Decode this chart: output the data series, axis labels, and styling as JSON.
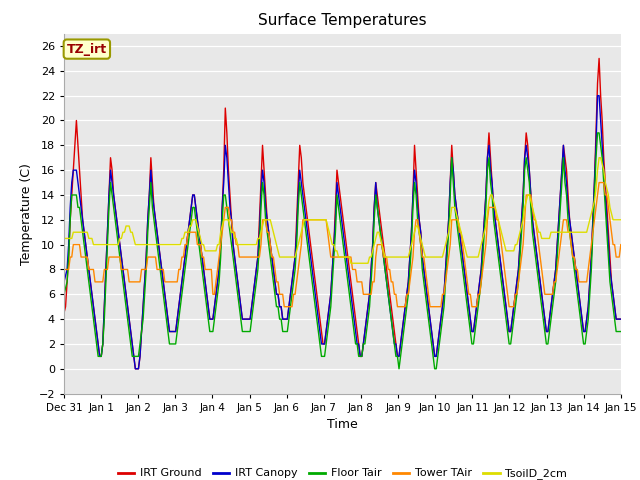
{
  "title": "Surface Temperatures",
  "xlabel": "Time",
  "ylabel": "Temperature (C)",
  "ylim": [
    -2,
    27
  ],
  "yticks": [
    -2,
    0,
    2,
    4,
    6,
    8,
    10,
    12,
    14,
    16,
    18,
    20,
    22,
    24,
    26
  ],
  "annotation_text": "TZ_irt",
  "annotation_color": "#990000",
  "annotation_bg": "#ffffcc",
  "annotation_border": "#999900",
  "fig_bg": "#ffffff",
  "plot_bg": "#e8e8e8",
  "colors": {
    "IRT Ground": "#dd0000",
    "IRT Canopy": "#0000cc",
    "Floor Tair": "#00aa00",
    "Tower TAir": "#ff8800",
    "TsoilD_2cm": "#dddd00"
  },
  "linewidth": 1.0,
  "n_days": 15,
  "pts_per_day": 24,
  "date_labels": [
    "Dec 31",
    "Jan 1",
    "Jan 2",
    "Jan 3",
    "Jan 4",
    "Jan 5",
    "Jan 6",
    "Jan 7",
    "Jan 8",
    "Jan 9",
    "Jan 10",
    "Jan 11",
    "Jan 12",
    "Jan 13",
    "Jan 14",
    "Jan 15"
  ],
  "series": {
    "IRT Ground": [
      4.5,
      5,
      7,
      9,
      12,
      14,
      16,
      18,
      20,
      18,
      16,
      14,
      12,
      11,
      10,
      9,
      8,
      7,
      6,
      5,
      4,
      3,
      2,
      1,
      1,
      2,
      5,
      8,
      11,
      14,
      17,
      16,
      14,
      13,
      12,
      11,
      10,
      9,
      8,
      7,
      6,
      5,
      4,
      3,
      2,
      1,
      0,
      0,
      0,
      1,
      3,
      5,
      7,
      9,
      12,
      14,
      17,
      15,
      13,
      12,
      11,
      10,
      9,
      8,
      7,
      6,
      5,
      4,
      3,
      3,
      3,
      3,
      3,
      4,
      5,
      6,
      7,
      8,
      9,
      10,
      11,
      12,
      13,
      14,
      14,
      13,
      12,
      11,
      10,
      9,
      8,
      7,
      6,
      5,
      4,
      4,
      4,
      5,
      6,
      7,
      8,
      10,
      13,
      16,
      21,
      19,
      16,
      14,
      12,
      10,
      9,
      8,
      7,
      6,
      5,
      4,
      4,
      4,
      4,
      4,
      4,
      5,
      6,
      7,
      8,
      9,
      12,
      15,
      18,
      16,
      14,
      12,
      11,
      10,
      9,
      8,
      7,
      6,
      6,
      5,
      5,
      4,
      4,
      4,
      4,
      5,
      6,
      7,
      8,
      9,
      12,
      15,
      18,
      17,
      15,
      14,
      13,
      12,
      11,
      10,
      9,
      8,
      7,
      6,
      5,
      4,
      3,
      2,
      2,
      3,
      4,
      5,
      6,
      8,
      10,
      13,
      16,
      15,
      14,
      13,
      12,
      11,
      10,
      9,
      8,
      7,
      6,
      5,
      4,
      3,
      2,
      1,
      1,
      2,
      3,
      4,
      5,
      6,
      8,
      10,
      13,
      15,
      14,
      13,
      12,
      11,
      10,
      9,
      8,
      7,
      6,
      5,
      4,
      3,
      2,
      1,
      1,
      2,
      3,
      4,
      5,
      6,
      7,
      9,
      11,
      14,
      18,
      16,
      14,
      12,
      11,
      9,
      8,
      7,
      6,
      5,
      4,
      3,
      2,
      1,
      1,
      2,
      3,
      4,
      5,
      6,
      8,
      10,
      12,
      15,
      18,
      16,
      14,
      13,
      12,
      11,
      10,
      9,
      8,
      7,
      6,
      5,
      4,
      3,
      3,
      4,
      5,
      6,
      7,
      8,
      10,
      12,
      14,
      17,
      19,
      17,
      15,
      13,
      12,
      11,
      10,
      9,
      8,
      7,
      6,
      5,
      4,
      3,
      3,
      4,
      5,
      6,
      7,
      8,
      10,
      12,
      14,
      17,
      19,
      18,
      16,
      14,
      12,
      11,
      10,
      9,
      8,
      7,
      6,
      5,
      4,
      3,
      3,
      4,
      5,
      6,
      7,
      8,
      10,
      12,
      14,
      16,
      18,
      17,
      16,
      14,
      12,
      11,
      10,
      9,
      8,
      7,
      6,
      5,
      4,
      3,
      3,
      4,
      5,
      7,
      9,
      12,
      15,
      19,
      23,
      25,
      22,
      20,
      17,
      15,
      13,
      11,
      9,
      7,
      6,
      5,
      4,
      4,
      4,
      4
    ],
    "IRT Canopy": [
      7,
      7.5,
      8,
      10,
      13,
      15,
      16,
      16,
      16,
      15,
      14,
      13,
      12,
      11,
      10,
      9,
      8,
      7,
      6,
      5,
      4,
      3,
      2,
      1,
      1,
      2,
      5,
      8,
      11,
      14,
      16,
      15,
      14,
      13,
      12,
      11,
      10,
      9,
      8,
      7,
      6,
      5,
      4,
      3,
      2,
      1,
      0,
      0,
      0,
      1,
      3,
      5,
      7,
      9,
      12,
      14,
      16,
      14,
      13,
      12,
      11,
      10,
      9,
      8,
      7,
      6,
      5,
      4,
      3,
      3,
      3,
      3,
      3,
      4,
      5,
      6,
      7,
      8,
      9,
      10,
      11,
      12,
      13,
      14,
      14,
      13,
      12,
      11,
      10,
      9,
      8,
      7,
      6,
      5,
      4,
      4,
      4,
      5,
      6,
      7,
      8,
      10,
      13,
      15,
      18,
      17,
      15,
      13,
      12,
      10,
      9,
      8,
      7,
      6,
      5,
      4,
      4,
      4,
      4,
      4,
      4,
      5,
      6,
      7,
      8,
      9,
      11,
      14,
      16,
      15,
      13,
      12,
      11,
      10,
      9,
      8,
      7,
      6,
      6,
      5,
      5,
      4,
      4,
      4,
      4,
      5,
      6,
      7,
      8,
      9,
      11,
      14,
      16,
      15,
      14,
      13,
      12,
      11,
      10,
      9,
      8,
      7,
      6,
      5,
      4,
      3,
      2,
      2,
      2,
      3,
      4,
      5,
      6,
      8,
      10,
      12,
      15,
      14,
      13,
      12,
      11,
      10,
      9,
      8,
      7,
      6,
      5,
      4,
      3,
      2,
      2,
      1,
      1,
      2,
      3,
      4,
      5,
      6,
      8,
      10,
      13,
      15,
      13,
      12,
      11,
      10,
      9,
      8,
      7,
      6,
      5,
      4,
      3,
      2,
      2,
      1,
      1,
      2,
      3,
      4,
      5,
      6,
      7,
      9,
      11,
      14,
      16,
      15,
      13,
      12,
      11,
      9,
      8,
      7,
      6,
      5,
      4,
      3,
      2,
      1,
      1,
      2,
      3,
      4,
      5,
      6,
      8,
      10,
      12,
      15,
      17,
      16,
      14,
      13,
      12,
      11,
      10,
      9,
      8,
      7,
      6,
      5,
      4,
      3,
      3,
      4,
      5,
      6,
      7,
      8,
      10,
      12,
      14,
      17,
      18,
      16,
      15,
      13,
      12,
      11,
      10,
      9,
      8,
      7,
      6,
      5,
      4,
      3,
      3,
      4,
      5,
      6,
      7,
      8,
      10,
      12,
      14,
      17,
      18,
      17,
      16,
      14,
      12,
      11,
      10,
      9,
      8,
      7,
      6,
      5,
      4,
      3,
      3,
      4,
      5,
      6,
      7,
      8,
      10,
      12,
      14,
      16,
      18,
      16,
      15,
      13,
      12,
      11,
      10,
      9,
      8,
      7,
      6,
      5,
      4,
      3,
      3,
      4,
      5,
      7,
      9,
      12,
      15,
      18,
      22,
      22,
      20,
      18,
      16,
      14,
      12,
      10,
      8,
      7,
      6,
      5,
      4,
      4,
      4,
      4
    ],
    "Floor Tair": [
      6,
      6.5,
      7,
      9,
      12,
      14,
      14,
      14,
      14,
      13,
      13,
      12,
      11,
      10,
      9,
      8,
      7,
      6,
      5,
      4,
      3,
      2,
      1,
      1,
      1,
      2,
      4,
      7,
      10,
      13,
      15,
      14,
      13,
      12,
      11,
      10,
      9,
      8,
      7,
      6,
      5,
      4,
      3,
      2,
      1,
      1,
      1,
      1,
      1,
      2,
      3,
      4,
      6,
      8,
      11,
      13,
      15,
      13,
      12,
      11,
      10,
      9,
      8,
      7,
      6,
      5,
      4,
      3,
      2,
      2,
      2,
      2,
      2,
      3,
      4,
      5,
      6,
      7,
      8,
      9,
      10,
      11,
      12,
      13,
      13,
      12,
      11,
      10,
      9,
      8,
      7,
      6,
      5,
      4,
      3,
      3,
      3,
      4,
      5,
      6,
      7,
      9,
      12,
      14,
      14,
      13,
      12,
      11,
      10,
      9,
      8,
      7,
      6,
      5,
      4,
      3,
      3,
      3,
      3,
      3,
      3,
      4,
      5,
      6,
      7,
      8,
      10,
      13,
      15,
      14,
      12,
      11,
      10,
      9,
      8,
      7,
      6,
      5,
      5,
      4,
      4,
      3,
      3,
      3,
      3,
      4,
      5,
      6,
      7,
      8,
      10,
      13,
      15,
      14,
      13,
      12,
      11,
      10,
      9,
      8,
      7,
      6,
      5,
      4,
      3,
      2,
      1,
      1,
      1,
      2,
      3,
      4,
      5,
      7,
      9,
      11,
      14,
      13,
      12,
      11,
      10,
      9,
      8,
      7,
      6,
      5,
      4,
      3,
      2,
      2,
      1,
      1,
      1,
      2,
      2,
      3,
      4,
      5,
      7,
      9,
      12,
      14,
      13,
      12,
      11,
      10,
      9,
      8,
      7,
      6,
      5,
      4,
      3,
      2,
      1,
      1,
      0,
      1,
      2,
      3,
      4,
      5,
      6,
      8,
      10,
      13,
      15,
      14,
      12,
      11,
      10,
      8,
      7,
      6,
      5,
      4,
      3,
      2,
      1,
      0,
      0,
      1,
      2,
      3,
      4,
      5,
      7,
      9,
      11,
      14,
      17,
      15,
      13,
      12,
      11,
      10,
      9,
      8,
      7,
      6,
      5,
      4,
      3,
      2,
      2,
      3,
      4,
      5,
      6,
      7,
      9,
      11,
      13,
      16,
      17,
      15,
      14,
      12,
      11,
      10,
      9,
      8,
      7,
      6,
      5,
      4,
      3,
      2,
      2,
      3,
      4,
      5,
      6,
      7,
      9,
      11,
      13,
      16,
      17,
      16,
      15,
      13,
      11,
      10,
      9,
      8,
      7,
      6,
      5,
      4,
      3,
      2,
      2,
      3,
      4,
      5,
      6,
      7,
      9,
      11,
      13,
      15,
      17,
      15,
      14,
      12,
      11,
      10,
      9,
      8,
      7,
      6,
      5,
      4,
      3,
      2,
      2,
      3,
      4,
      6,
      8,
      11,
      14,
      17,
      19,
      19,
      18,
      17,
      15,
      13,
      11,
      9,
      7,
      6,
      5,
      4,
      3,
      3,
      3,
      3
    ],
    "Tower TAir": [
      8,
      8,
      8,
      8,
      9,
      9,
      10,
      10,
      10,
      10,
      10,
      9,
      9,
      9,
      9,
      9,
      8,
      8,
      8,
      8,
      7,
      7,
      7,
      7,
      7,
      7,
      8,
      8,
      8,
      9,
      9,
      9,
      9,
      9,
      9,
      9,
      9,
      8,
      8,
      8,
      8,
      8,
      7,
      7,
      7,
      7,
      7,
      7,
      7,
      7,
      8,
      8,
      8,
      8,
      9,
      9,
      9,
      9,
      9,
      9,
      8,
      8,
      8,
      8,
      8,
      7,
      7,
      7,
      7,
      7,
      7,
      7,
      7,
      7,
      8,
      8,
      9,
      9,
      10,
      10,
      11,
      11,
      11,
      11,
      11,
      11,
      10,
      10,
      10,
      9,
      9,
      8,
      8,
      8,
      8,
      8,
      6,
      6,
      7,
      8,
      9,
      10,
      11,
      12,
      13,
      13,
      13,
      12,
      12,
      11,
      11,
      10,
      10,
      9,
      9,
      9,
      9,
      9,
      9,
      9,
      9,
      9,
      9,
      9,
      9,
      9,
      9,
      10,
      12,
      12,
      12,
      11,
      11,
      10,
      9,
      9,
      8,
      7,
      7,
      6,
      6,
      6,
      5,
      5,
      5,
      5,
      5,
      5,
      6,
      6,
      7,
      8,
      9,
      10,
      12,
      12,
      12,
      12,
      12,
      12,
      12,
      12,
      12,
      12,
      12,
      12,
      12,
      12,
      12,
      12,
      11,
      10,
      9,
      9,
      9,
      9,
      9,
      9,
      9,
      9,
      9,
      9,
      9,
      9,
      9,
      9,
      8,
      8,
      8,
      7,
      7,
      7,
      7,
      6,
      6,
      6,
      6,
      6,
      6,
      7,
      7,
      9,
      10,
      10,
      10,
      10,
      9,
      9,
      9,
      8,
      8,
      7,
      7,
      6,
      6,
      5,
      5,
      5,
      5,
      5,
      5,
      6,
      6,
      7,
      8,
      9,
      11,
      12,
      12,
      11,
      10,
      9,
      9,
      8,
      7,
      6,
      5,
      5,
      5,
      5,
      5,
      5,
      5,
      5,
      6,
      6,
      7,
      8,
      9,
      10,
      12,
      12,
      12,
      12,
      12,
      11,
      11,
      10,
      9,
      8,
      7,
      6,
      6,
      5,
      5,
      5,
      5,
      6,
      6,
      7,
      8,
      9,
      10,
      12,
      13,
      13,
      13,
      13,
      13,
      12,
      12,
      11,
      10,
      9,
      8,
      7,
      6,
      5,
      5,
      5,
      5,
      6,
      6,
      7,
      8,
      9,
      10,
      12,
      14,
      14,
      14,
      14,
      13,
      12,
      12,
      11,
      10,
      9,
      8,
      7,
      6,
      6,
      6,
      6,
      6,
      6,
      7,
      7,
      8,
      9,
      10,
      11,
      12,
      12,
      12,
      11,
      11,
      10,
      9,
      9,
      8,
      8,
      7,
      7,
      7,
      7,
      7,
      7,
      8,
      9,
      10,
      11,
      12,
      13,
      14,
      15,
      15,
      15,
      15,
      14,
      14,
      13,
      12,
      11,
      10,
      10,
      9,
      9,
      9,
      10
    ],
    "TsoilD_2cm": [
      10.5,
      10.5,
      10.5,
      10.5,
      10.5,
      10.5,
      11,
      11,
      11,
      11,
      11,
      11,
      11,
      11,
      11,
      11,
      10.5,
      10.5,
      10.5,
      10,
      10,
      10,
      10,
      10,
      10,
      10,
      10,
      10,
      10,
      10,
      10,
      10,
      10,
      10,
      10,
      10,
      10.5,
      10.5,
      11,
      11,
      11.5,
      11.5,
      11.5,
      11,
      11,
      10.5,
      10,
      10,
      10,
      10,
      10,
      10,
      10,
      10,
      10,
      10,
      10,
      10,
      10,
      10,
      10,
      10,
      10,
      10,
      10,
      10,
      10,
      10,
      10,
      10,
      10,
      10,
      10,
      10,
      10,
      10,
      10.5,
      10.5,
      11,
      11,
      11,
      11.5,
      11.5,
      12,
      12,
      12,
      11.5,
      11,
      10.5,
      10,
      10,
      9.5,
      9.5,
      9.5,
      9.5,
      9.5,
      9.5,
      9.5,
      9.5,
      10,
      10,
      11,
      11.5,
      12,
      12,
      12,
      12,
      11.5,
      11,
      11,
      10.5,
      10.5,
      10,
      10,
      10,
      10,
      10,
      10,
      10,
      10,
      10,
      10,
      10,
      10,
      10,
      10.5,
      10.5,
      11,
      11.5,
      12,
      12,
      12,
      12,
      12,
      11.5,
      11,
      10.5,
      10,
      9.5,
      9,
      9,
      9,
      9,
      9,
      9,
      9,
      9,
      9,
      9,
      9,
      9.5,
      10,
      10.5,
      11,
      11.5,
      12,
      12,
      12,
      12,
      12,
      12,
      12,
      12,
      12,
      12,
      12,
      12,
      12,
      12,
      12,
      11.5,
      11,
      10.5,
      10,
      10,
      9.5,
      9.5,
      9,
      9,
      9,
      9,
      9,
      9,
      9,
      9,
      8.5,
      8.5,
      8.5,
      8.5,
      8.5,
      8.5,
      8.5,
      8.5,
      8.5,
      8.5,
      8.5,
      8.5,
      9,
      9,
      9.5,
      10,
      10.5,
      11,
      11,
      10.5,
      10,
      9.5,
      9,
      9,
      9,
      9,
      9,
      9,
      9,
      9,
      9,
      9,
      9,
      9,
      9,
      9,
      9,
      9,
      9.5,
      10,
      10.5,
      11,
      11.5,
      11.5,
      11,
      10.5,
      10,
      9.5,
      9,
      9,
      9,
      9,
      9,
      9,
      9,
      9,
      9,
      9,
      9,
      9,
      9.5,
      10,
      10.5,
      11,
      12,
      13,
      13,
      13,
      12.5,
      12,
      11.5,
      11,
      10.5,
      10,
      9.5,
      9,
      9,
      9,
      9,
      9,
      9,
      9,
      9,
      9.5,
      10,
      10.5,
      11,
      11.5,
      12.5,
      13.5,
      14,
      14,
      13.5,
      13,
      12.5,
      12,
      11.5,
      11,
      10.5,
      10,
      9.5,
      9.5,
      9.5,
      9.5,
      9.5,
      9.5,
      10,
      10,
      10.5,
      11,
      11.5,
      12,
      13,
      13.5,
      14,
      14,
      13.5,
      13,
      12.5,
      12,
      11.5,
      11,
      11,
      10.5,
      10.5,
      10.5,
      10.5,
      10.5,
      10.5,
      11,
      11,
      11,
      11,
      11,
      11,
      11,
      11,
      11,
      11,
      11,
      11,
      11,
      11,
      11,
      11,
      11,
      11,
      11,
      11,
      11,
      11,
      11,
      11,
      11.5,
      12,
      12.5,
      13,
      13.5,
      14.5,
      16,
      17,
      17,
      16.5,
      16,
      15,
      14.5,
      14,
      13,
      12.5,
      12,
      12,
      12,
      12,
      12,
      12
    ]
  }
}
